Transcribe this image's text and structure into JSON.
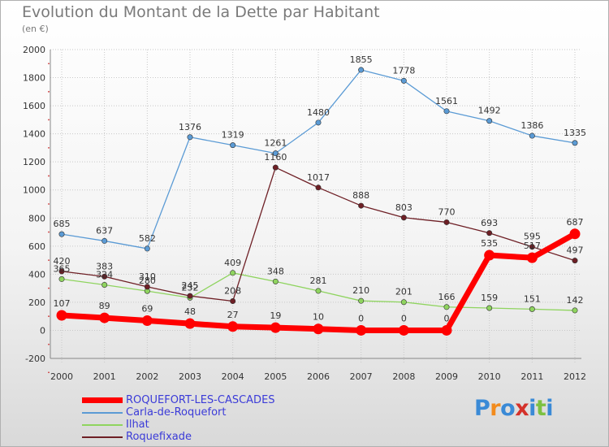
{
  "title": "Evolution du Montant de la Dette par Habitant",
  "subtitle": "(en €)",
  "logo_text": "Proxiti",
  "chart_data": {
    "type": "line",
    "x": [
      "2000",
      "2001",
      "2002",
      "2003",
      "2004",
      "2005",
      "2006",
      "2007",
      "2008",
      "2009",
      "2010",
      "2011",
      "2012"
    ],
    "ylim": [
      -200,
      2000
    ],
    "yticks": [
      -200,
      0,
      200,
      400,
      600,
      800,
      1000,
      1200,
      1400,
      1600,
      1800,
      2000
    ],
    "grid": "dotted",
    "legend_position": "bottom-left",
    "series": [
      {
        "name": "Carla-de-Roquefort",
        "color": "#5b9bd5",
        "values": [
          685,
          637,
          582,
          1376,
          1319,
          1261,
          1480,
          1855,
          1778,
          1561,
          1492,
          1386,
          1335
        ]
      },
      {
        "name": "Ilhat",
        "color": "#8fd45f",
        "values": [
          365,
          324,
          280,
          232,
          409,
          348,
          281,
          210,
          201,
          166,
          159,
          151,
          142
        ]
      },
      {
        "name": "Roquefixade",
        "color": "#6e1f25",
        "values": [
          420,
          383,
          310,
          245,
          208,
          1160,
          1017,
          888,
          803,
          770,
          693,
          595,
          497
        ]
      },
      {
        "name": "ROQUEFORT-LES-CASCADES",
        "color": "#ff0000",
        "values": [
          107,
          89,
          69,
          48,
          27,
          19,
          10,
          0,
          0,
          0,
          535,
          517,
          687
        ]
      }
    ],
    "legend_order": [
      "ROQUEFORT-LES-CASCADES",
      "Carla-de-Roquefort",
      "Ilhat",
      "Roquefixade"
    ]
  }
}
